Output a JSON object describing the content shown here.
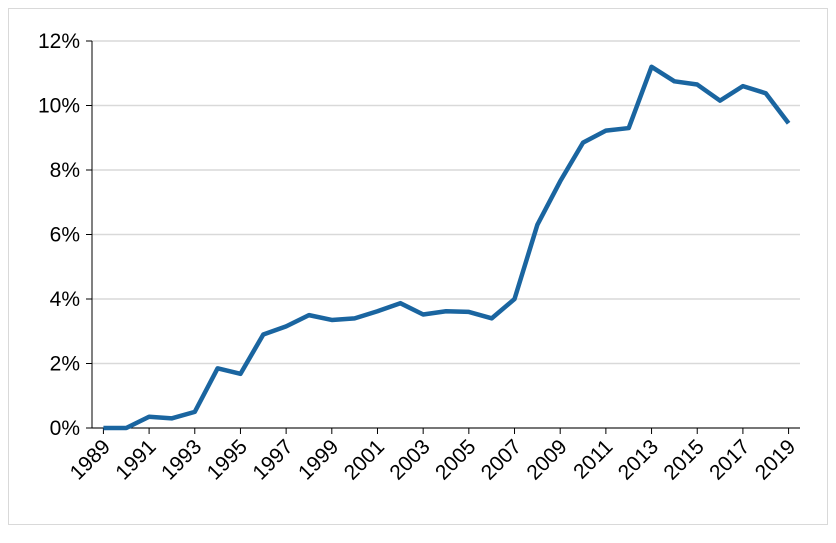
{
  "chart_data": {
    "type": "line",
    "x": [
      1989,
      1990,
      1991,
      1992,
      1993,
      1994,
      1995,
      1996,
      1997,
      1998,
      1999,
      2000,
      2001,
      2002,
      2003,
      2004,
      2005,
      2006,
      2007,
      2008,
      2009,
      2010,
      2011,
      2012,
      2013,
      2014,
      2015,
      2016,
      2017,
      2018,
      2019
    ],
    "series": [
      {
        "color": "#1a65a0",
        "values": [
          0,
          0,
          0.35,
          0.3,
          0.5,
          1.85,
          1.68,
          2.9,
          3.15,
          3.5,
          3.35,
          3.4,
          3.62,
          3.87,
          3.52,
          3.62,
          3.6,
          3.4,
          4.0,
          6.3,
          7.65,
          8.85,
          9.22,
          9.3,
          11.2,
          10.75,
          10.65,
          10.15,
          10.6,
          10.38,
          9.45
        ]
      }
    ],
    "xlim": [
      1988.5,
      2019.5
    ],
    "xticks": [
      1989,
      1991,
      1993,
      1995,
      1997,
      1999,
      2001,
      2003,
      2005,
      2007,
      2009,
      2011,
      2013,
      2015,
      2017,
      2019
    ],
    "ylim": [
      0,
      12
    ],
    "yticks": [
      {
        "value": 0,
        "label": "0%"
      },
      {
        "value": 2,
        "label": "2%"
      },
      {
        "value": 4,
        "label": "4%"
      },
      {
        "value": 6,
        "label": "6%"
      },
      {
        "value": 8,
        "label": "8%"
      },
      {
        "value": 10,
        "label": "10%"
      },
      {
        "value": 12,
        "label": "12%"
      }
    ],
    "grid": true
  }
}
